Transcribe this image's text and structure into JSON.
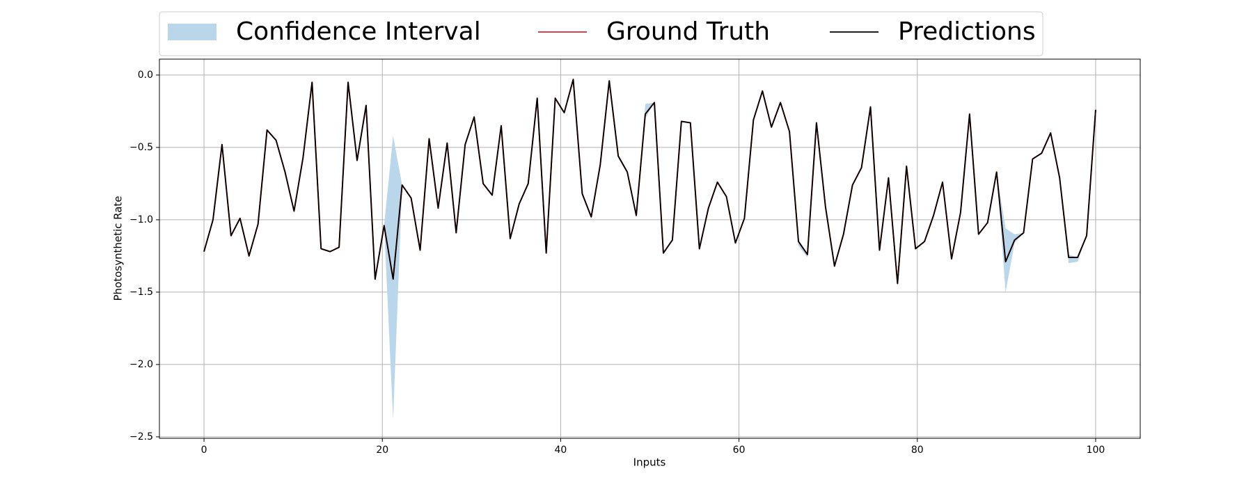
{
  "chart_data": {
    "type": "line",
    "xlabel": "Inputs",
    "ylabel": "Photosynthetic Rate",
    "x": [
      0,
      1.01,
      2.02,
      3.03,
      4.04,
      5.05,
      6.06,
      7.07,
      8.08,
      9.09,
      10.1,
      11.11,
      12.12,
      13.13,
      14.14,
      15.15,
      16.16,
      17.17,
      18.18,
      19.19,
      20.2,
      21.21,
      22.22,
      23.23,
      24.24,
      25.25,
      26.26,
      27.27,
      28.28,
      29.29,
      30.3,
      31.31,
      32.32,
      33.33,
      34.34,
      35.35,
      36.36,
      37.37,
      38.38,
      39.39,
      40.4,
      41.41,
      42.42,
      43.43,
      44.44,
      45.45,
      46.46,
      47.47,
      48.48,
      49.49,
      50.51,
      51.52,
      52.53,
      53.54,
      54.55,
      55.56,
      56.57,
      57.58,
      58.59,
      59.6,
      60.61,
      61.62,
      62.63,
      63.64,
      64.65,
      65.66,
      66.67,
      67.68,
      68.69,
      69.7,
      70.71,
      71.72,
      72.73,
      73.74,
      74.75,
      75.76,
      76.77,
      77.78,
      78.79,
      79.8,
      80.81,
      81.82,
      82.83,
      83.84,
      84.85,
      85.86,
      86.87,
      87.88,
      88.89,
      89.9,
      90.91,
      91.92,
      92.93,
      93.94,
      94.95,
      95.96,
      96.97,
      97.98,
      98.99,
      100
    ],
    "series": [
      {
        "name": "Confidence Interval",
        "color": "#bad6eb",
        "lower": [
          -1.22,
          -1.0,
          -0.48,
          -1.11,
          -0.99,
          -1.25,
          -1.03,
          -0.38,
          -0.45,
          -0.67,
          -0.94,
          -0.57,
          -0.05,
          -1.2,
          -1.22,
          -1.19,
          -0.05,
          -0.59,
          -0.21,
          -1.41,
          -1.04,
          -2.38,
          -0.76,
          -0.85,
          -1.21,
          -0.44,
          -0.92,
          -0.47,
          -1.09,
          -0.48,
          -0.29,
          -0.75,
          -0.83,
          -0.35,
          -1.13,
          -0.89,
          -0.75,
          -0.16,
          -1.23,
          -0.16,
          -0.26,
          -0.03,
          -0.82,
          -0.98,
          -0.62,
          -0.04,
          -0.56,
          -0.67,
          -0.97,
          -0.3,
          -0.19,
          -1.23,
          -1.14,
          -0.32,
          -0.33,
          -1.2,
          -0.92,
          -0.74,
          -0.84,
          -1.16,
          -0.99,
          -0.31,
          -0.11,
          -0.36,
          -0.19,
          -0.39,
          -1.18,
          -1.26,
          -0.33,
          -0.91,
          -1.32,
          -1.1,
          -0.76,
          -0.64,
          -0.22,
          -1.21,
          -0.71,
          -1.44,
          -0.63,
          -1.2,
          -1.15,
          -0.97,
          -0.74,
          -1.27,
          -0.95,
          -0.27,
          -1.1,
          -1.02,
          -0.67,
          -1.5,
          -1.16,
          -1.09,
          -0.58,
          -0.54,
          -0.4,
          -0.71,
          -1.3,
          -1.29,
          -1.11,
          -0.24
        ],
        "upper": [
          -1.22,
          -1.0,
          -0.48,
          -1.11,
          -0.99,
          -1.25,
          -1.03,
          -0.38,
          -0.45,
          -0.67,
          -0.94,
          -0.57,
          -0.05,
          -1.2,
          -1.22,
          -1.19,
          -0.05,
          -0.59,
          -0.21,
          -1.41,
          -1.04,
          -0.42,
          -0.76,
          -0.85,
          -1.21,
          -0.44,
          -0.92,
          -0.47,
          -1.09,
          -0.48,
          -0.29,
          -0.75,
          -0.83,
          -0.35,
          -1.13,
          -0.89,
          -0.75,
          -0.16,
          -1.23,
          -0.16,
          -0.26,
          -0.03,
          -0.82,
          -0.98,
          -0.62,
          -0.04,
          -0.56,
          -0.67,
          -0.97,
          -0.2,
          -0.19,
          -1.23,
          -1.14,
          -0.32,
          -0.33,
          -1.2,
          -0.92,
          -0.74,
          -0.84,
          -1.16,
          -0.99,
          -0.31,
          -0.11,
          -0.36,
          -0.19,
          -0.39,
          -1.15,
          -1.24,
          -0.33,
          -0.91,
          -1.32,
          -1.1,
          -0.76,
          -0.64,
          -0.22,
          -1.21,
          -0.71,
          -1.44,
          -0.63,
          -1.2,
          -1.15,
          -0.97,
          -0.74,
          -1.27,
          -0.95,
          -0.27,
          -1.1,
          -1.02,
          -0.67,
          -1.06,
          -1.1,
          -1.09,
          -0.58,
          -0.54,
          -0.4,
          -0.71,
          -1.24,
          -1.26,
          -1.11,
          -0.24
        ]
      },
      {
        "name": "Ground Truth",
        "color": "#d62728",
        "values": [
          -1.22,
          -1.0,
          -0.48,
          -1.11,
          -0.99,
          -1.25,
          -1.03,
          -0.38,
          -0.45,
          -0.67,
          -0.94,
          -0.57,
          -0.05,
          -1.2,
          -1.22,
          -1.19,
          -0.05,
          -0.59,
          -0.21,
          -1.41,
          -1.04,
          -1.41,
          -0.76,
          -0.85,
          -1.21,
          -0.44,
          -0.92,
          -0.47,
          -1.09,
          -0.48,
          -0.29,
          -0.75,
          -0.83,
          -0.35,
          -1.13,
          -0.89,
          -0.75,
          -0.16,
          -1.23,
          -0.16,
          -0.26,
          -0.03,
          -0.82,
          -0.98,
          -0.62,
          -0.04,
          -0.56,
          -0.67,
          -0.97,
          -0.27,
          -0.19,
          -1.23,
          -1.14,
          -0.32,
          -0.33,
          -1.2,
          -0.92,
          -0.74,
          -0.84,
          -1.16,
          -0.99,
          -0.31,
          -0.11,
          -0.36,
          -0.19,
          -0.39,
          -1.15,
          -1.24,
          -0.33,
          -0.91,
          -1.32,
          -1.1,
          -0.76,
          -0.64,
          -0.22,
          -1.21,
          -0.71,
          -1.44,
          -0.63,
          -1.2,
          -1.15,
          -0.97,
          -0.74,
          -1.27,
          -0.95,
          -0.27,
          -1.1,
          -1.02,
          -0.67,
          -1.29,
          -1.14,
          -1.09,
          -0.58,
          -0.54,
          -0.4,
          -0.71,
          -1.26,
          -1.26,
          -1.11,
          -0.24
        ]
      },
      {
        "name": "Predictions",
        "color": "#000000",
        "values": [
          -1.22,
          -1.0,
          -0.48,
          -1.11,
          -0.99,
          -1.25,
          -1.03,
          -0.38,
          -0.45,
          -0.67,
          -0.94,
          -0.57,
          -0.05,
          -1.2,
          -1.22,
          -1.19,
          -0.05,
          -0.59,
          -0.21,
          -1.41,
          -1.04,
          -1.41,
          -0.76,
          -0.85,
          -1.21,
          -0.44,
          -0.92,
          -0.47,
          -1.09,
          -0.48,
          -0.29,
          -0.75,
          -0.83,
          -0.35,
          -1.13,
          -0.89,
          -0.75,
          -0.16,
          -1.23,
          -0.16,
          -0.26,
          -0.03,
          -0.82,
          -0.98,
          -0.62,
          -0.04,
          -0.56,
          -0.67,
          -0.97,
          -0.27,
          -0.19,
          -1.23,
          -1.14,
          -0.32,
          -0.33,
          -1.2,
          -0.92,
          -0.74,
          -0.84,
          -1.16,
          -0.99,
          -0.31,
          -0.11,
          -0.36,
          -0.19,
          -0.39,
          -1.15,
          -1.24,
          -0.33,
          -0.91,
          -1.32,
          -1.1,
          -0.76,
          -0.64,
          -0.22,
          -1.21,
          -0.71,
          -1.44,
          -0.63,
          -1.2,
          -1.15,
          -0.97,
          -0.74,
          -1.27,
          -0.95,
          -0.27,
          -1.1,
          -1.02,
          -0.67,
          -1.29,
          -1.14,
          -1.09,
          -0.58,
          -0.54,
          -0.4,
          -0.71,
          -1.26,
          -1.26,
          -1.11,
          -0.24
        ]
      }
    ],
    "xlim": [
      -5,
      105
    ],
    "ylim": [
      -2.51,
      0.11
    ],
    "xticks": [
      0,
      20,
      40,
      60,
      80,
      100
    ],
    "yticks": [
      {
        "value": -2.5,
        "label": "−2.5"
      },
      {
        "value": -2.0,
        "label": "−2.0"
      },
      {
        "value": -1.5,
        "label": "−1.5"
      },
      {
        "value": -1.0,
        "label": "−1.0"
      },
      {
        "value": -0.5,
        "label": "−0.5"
      },
      {
        "value": 0,
        "label": "0.0"
      }
    ],
    "grid": true,
    "legend": "top"
  }
}
